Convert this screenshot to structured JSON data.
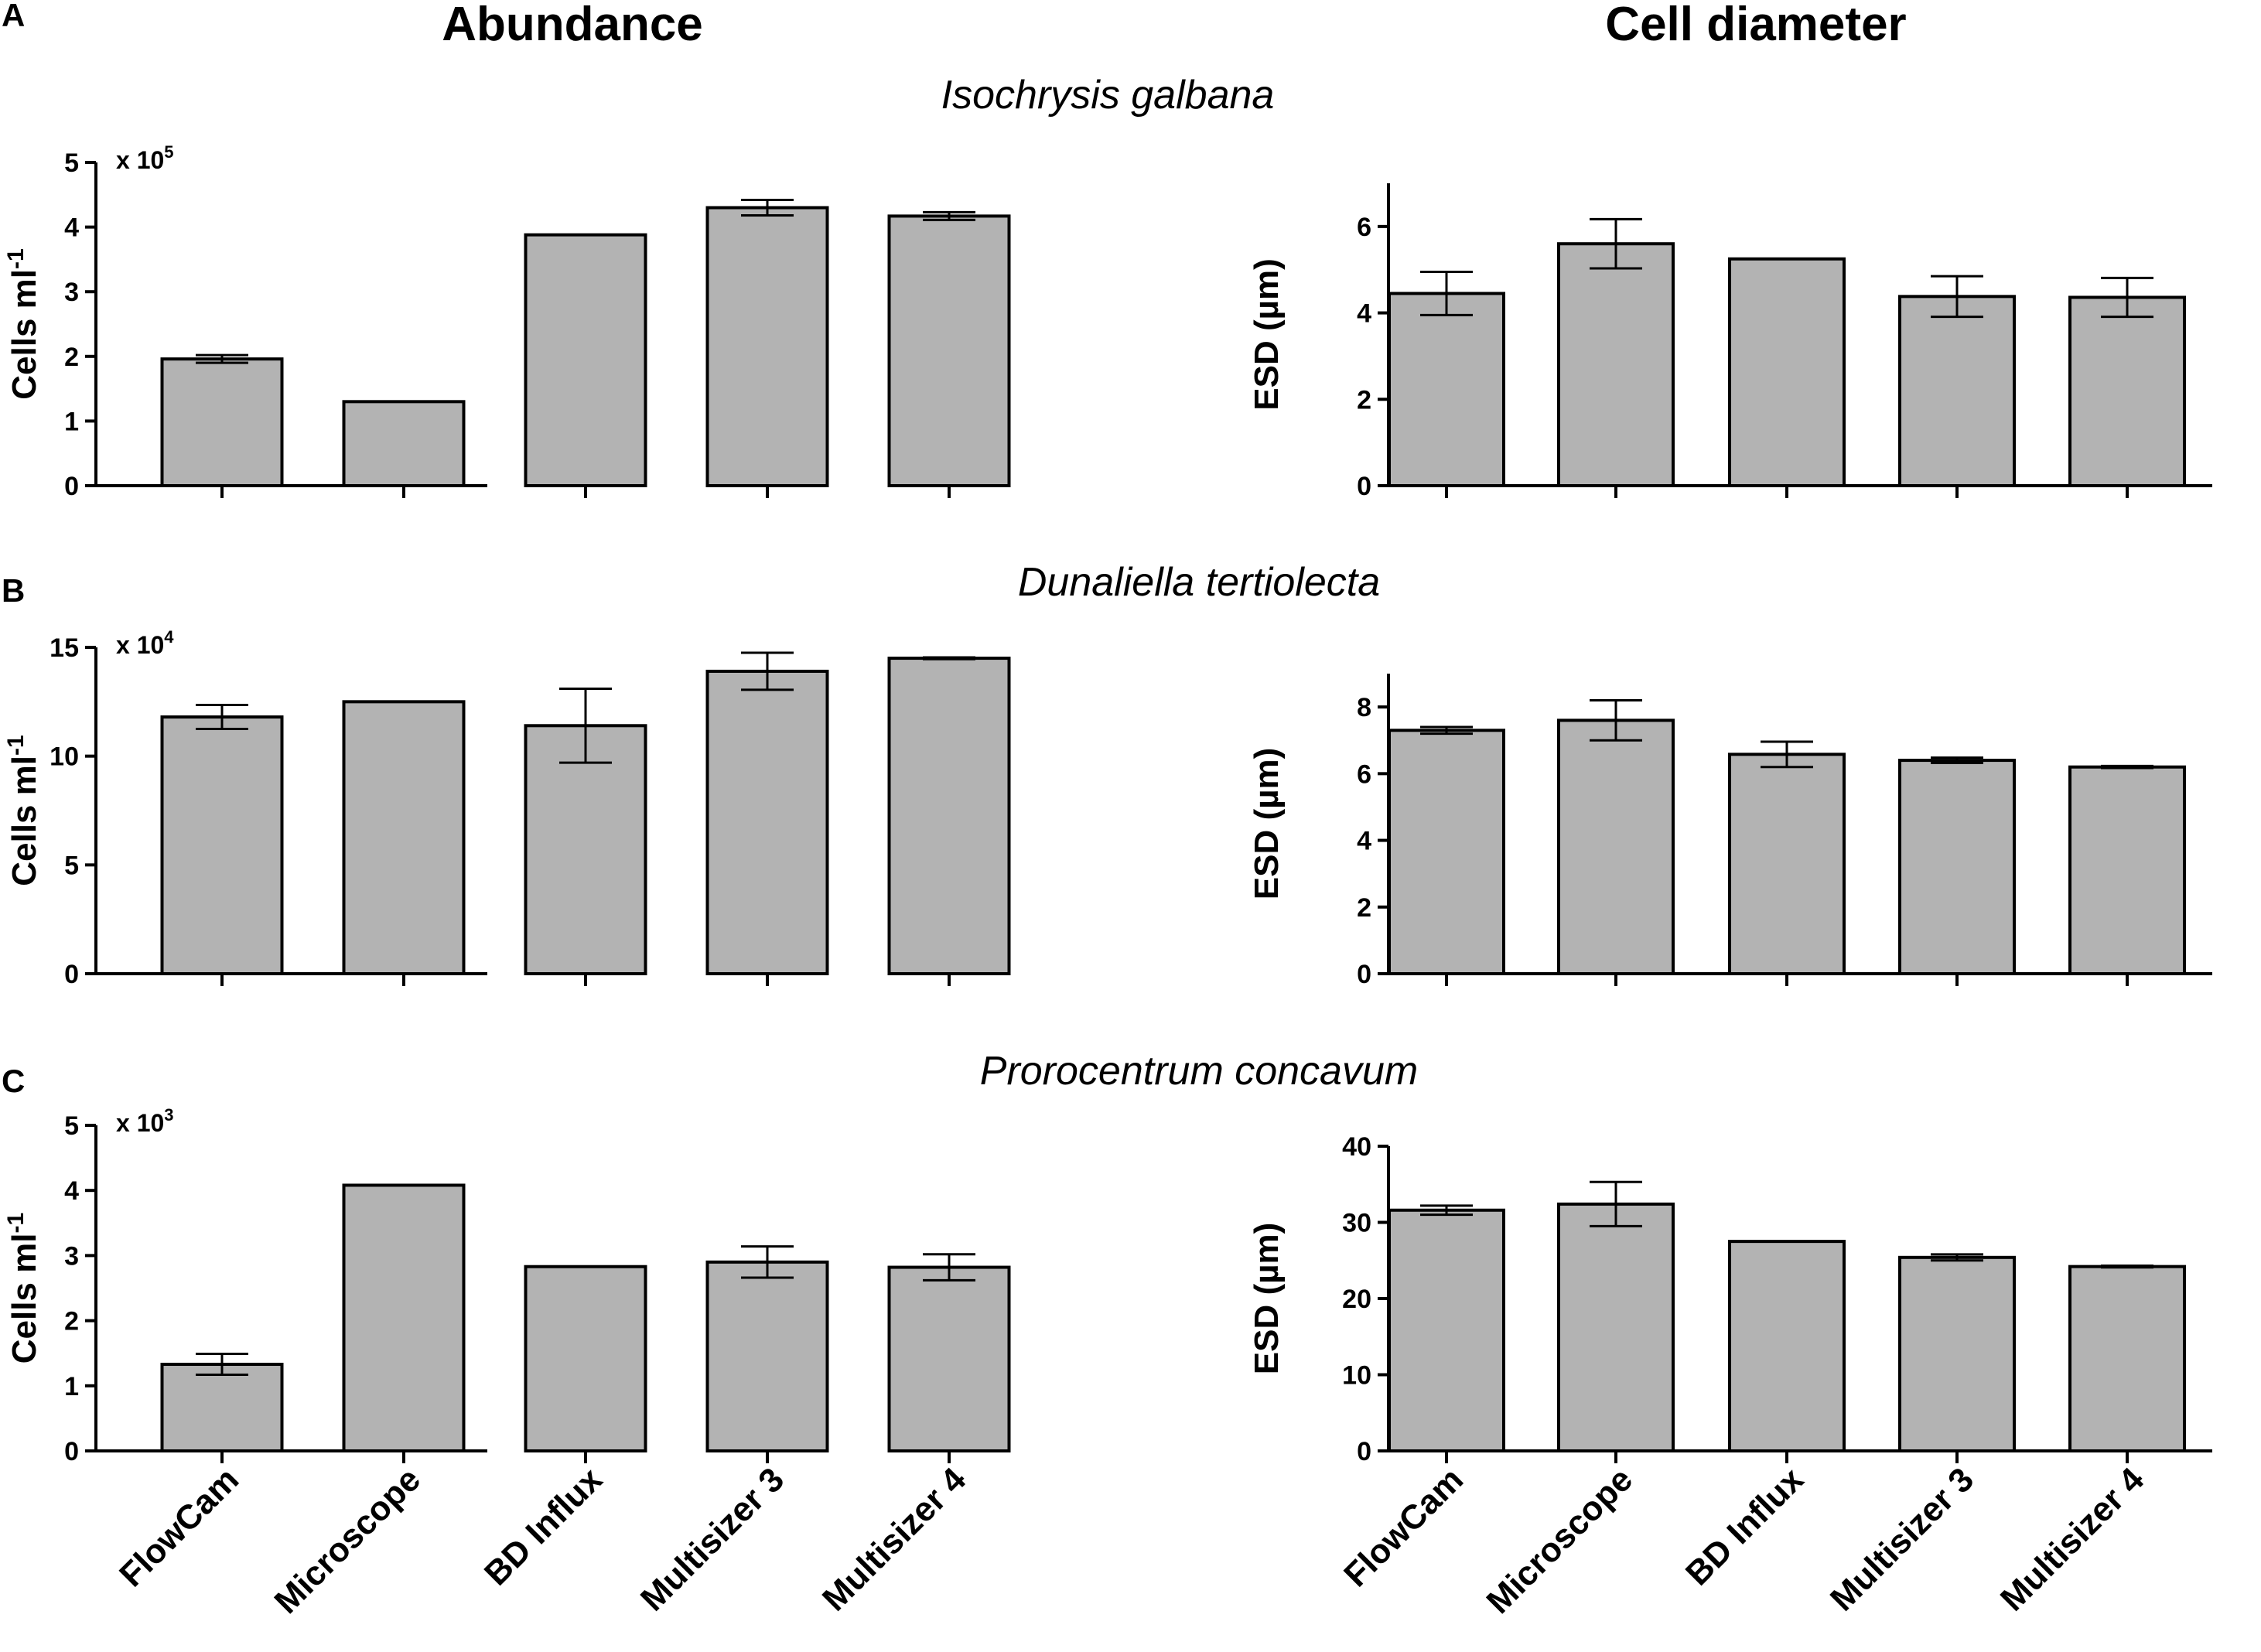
{
  "figure": {
    "column_titles": {
      "left": "Abundance",
      "right": "Cell diameter"
    }
  },
  "chart_data": [
    {
      "type": "bar",
      "panel": "A",
      "species": "Isochrysis galbana",
      "title": "Abundance",
      "ylabel": "Cells ml",
      "ylabel_sup": "-1",
      "multiplier": "x 10",
      "multiplier_exp": "5",
      "categories": [
        "FlowCam",
        "Microscope",
        "BD Influx",
        "Multisizer 3",
        "Multisizer 4"
      ],
      "values": [
        1.96,
        1.3,
        3.88,
        4.3,
        4.17
      ],
      "errors": [
        0.06,
        0,
        0,
        0.12,
        0.06
      ],
      "ylim": [
        0,
        5
      ],
      "yticks": [
        0,
        1,
        2,
        3,
        4,
        5
      ],
      "show_xlabels": false
    },
    {
      "type": "bar",
      "panel": "A",
      "species": "Isochrysis galbana",
      "title": "Cell diameter",
      "ylabel": "ESD (µm)",
      "categories": [
        "FlowCam",
        "Microscope",
        "BD Influx",
        "Multisizer 3",
        "Multisizer 4"
      ],
      "values": [
        4.45,
        5.6,
        5.25,
        4.38,
        4.36
      ],
      "errors": [
        0.5,
        0.57,
        0,
        0.47,
        0.45
      ],
      "ylim": [
        0,
        7
      ],
      "yticks": [
        0,
        2,
        4,
        6
      ],
      "show_xlabels": false
    },
    {
      "type": "bar",
      "panel": "B",
      "species": "Dunaliella tertiolecta",
      "title": "Abundance",
      "ylabel": "Cells ml",
      "ylabel_sup": "-1",
      "multiplier": "x 10",
      "multiplier_exp": "4",
      "categories": [
        "FlowCam",
        "Microscope",
        "BD Influx",
        "Multisizer 3",
        "Multisizer 4"
      ],
      "values": [
        11.8,
        12.5,
        11.4,
        13.9,
        14.5
      ],
      "errors": [
        0.55,
        0,
        1.7,
        0.85,
        0.04
      ],
      "ylim": [
        0,
        15
      ],
      "yticks": [
        0,
        5,
        10,
        15
      ],
      "show_xlabels": false
    },
    {
      "type": "bar",
      "panel": "B",
      "species": "Dunaliella tertiolecta",
      "title": "Cell diameter",
      "ylabel": "ESD (µm)",
      "categories": [
        "FlowCam",
        "Microscope",
        "BD Influx",
        "Multisizer 3",
        "Multisizer 4"
      ],
      "values": [
        7.3,
        7.6,
        6.58,
        6.4,
        6.2
      ],
      "errors": [
        0.1,
        0.6,
        0.38,
        0.08,
        0.03
      ],
      "ylim": [
        0,
        9
      ],
      "yticks": [
        0,
        2,
        4,
        6,
        8
      ],
      "show_xlabels": false
    },
    {
      "type": "bar",
      "panel": "C",
      "species": "Prorocentrum concavum",
      "title": "Abundance",
      "ylabel": "Cells ml",
      "ylabel_sup": "-1",
      "multiplier": "x 10",
      "multiplier_exp": "3",
      "categories": [
        "FlowCam",
        "Microscope",
        "BD Influx",
        "Multisizer 3",
        "Multisizer 4"
      ],
      "values": [
        1.33,
        4.08,
        2.83,
        2.9,
        2.82
      ],
      "errors": [
        0.16,
        0,
        0,
        0.24,
        0.2
      ],
      "ylim": [
        0,
        5
      ],
      "yticks": [
        0,
        1,
        2,
        3,
        4,
        5
      ],
      "show_xlabels": true
    },
    {
      "type": "bar",
      "panel": "C",
      "species": "Prorocentrum concavum",
      "title": "Cell diameter",
      "ylabel": "ESD (µm)",
      "categories": [
        "FlowCam",
        "Microscope",
        "BD Influx",
        "Multisizer 3",
        "Multisizer 4"
      ],
      "values": [
        31.6,
        32.4,
        27.5,
        25.4,
        24.2
      ],
      "errors": [
        0.6,
        2.9,
        0,
        0.4,
        0.12
      ],
      "ylim": [
        0,
        40
      ],
      "yticks": [
        0,
        10,
        20,
        30,
        40
      ],
      "show_xlabels": true
    }
  ]
}
